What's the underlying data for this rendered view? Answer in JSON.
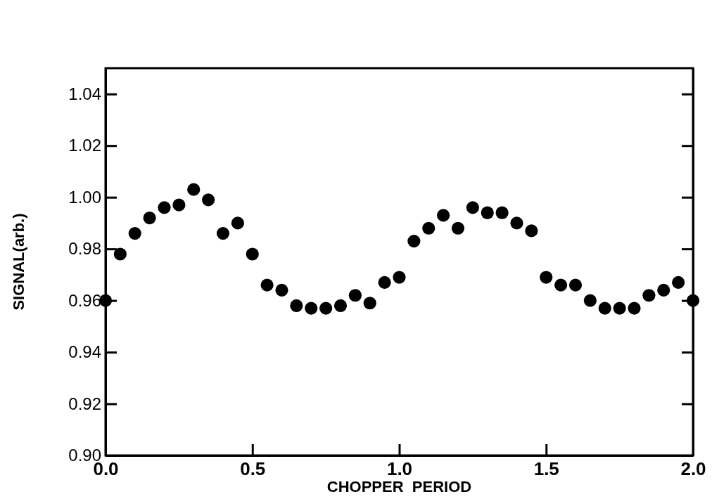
{
  "chart_data": {
    "type": "scatter",
    "xlabel": "CHOPPER  PERIOD",
    "ylabel": "SIGNAL(arb.)",
    "x": [
      0,
      0.05,
      0.1,
      0.15,
      0.2,
      0.25,
      0.3,
      0.35,
      0.4,
      0.45,
      0.5,
      0.55,
      0.6,
      0.65,
      0.7,
      0.75,
      0.8,
      0.85,
      0.9,
      0.95,
      1.0,
      1.05,
      1.1,
      1.15,
      1.2,
      1.25,
      1.3,
      1.35,
      1.4,
      1.45,
      1.5,
      1.55,
      1.6,
      1.65,
      1.7,
      1.75,
      1.8,
      1.85,
      1.9,
      1.95,
      2.0
    ],
    "series": [
      {
        "color": "#000000",
        "values": [
          0.96,
          0.978,
          0.986,
          0.992,
          0.996,
          0.997,
          1.003,
          0.999,
          0.986,
          0.99,
          0.978,
          0.966,
          0.964,
          0.958,
          0.957,
          0.957,
          0.958,
          0.962,
          0.959,
          0.967,
          0.969,
          0.983,
          0.988,
          0.993,
          0.988,
          0.996,
          0.994,
          0.994,
          0.99,
          0.987,
          0.969,
          0.966,
          0.966,
          0.96,
          0.957,
          0.957,
          0.957,
          0.962,
          0.964,
          0.967,
          0.96
        ]
      }
    ],
    "xlim": [
      0,
      2.0
    ],
    "xticks": [
      {
        "value": 0,
        "label": "0.0"
      },
      {
        "value": 0.5,
        "label": "0.5"
      },
      {
        "value": 1.0,
        "label": "1.0"
      },
      {
        "value": 1.5,
        "label": "1.5"
      },
      {
        "value": 2.0,
        "label": "2.0"
      }
    ],
    "ylim": [
      0.9,
      1.05
    ],
    "yticks": [
      {
        "value": 0.9,
        "label": "0.90"
      },
      {
        "value": 0.92,
        "label": "0.92"
      },
      {
        "value": 0.94,
        "label": "0.94"
      },
      {
        "value": 0.96,
        "label": "0.96"
      },
      {
        "value": 0.98,
        "label": "0.98"
      },
      {
        "value": 1.0,
        "label": "1.00"
      },
      {
        "value": 1.02,
        "label": "1.02"
      },
      {
        "value": 1.04,
        "label": "1.04"
      }
    ],
    "marker": "circle"
  }
}
